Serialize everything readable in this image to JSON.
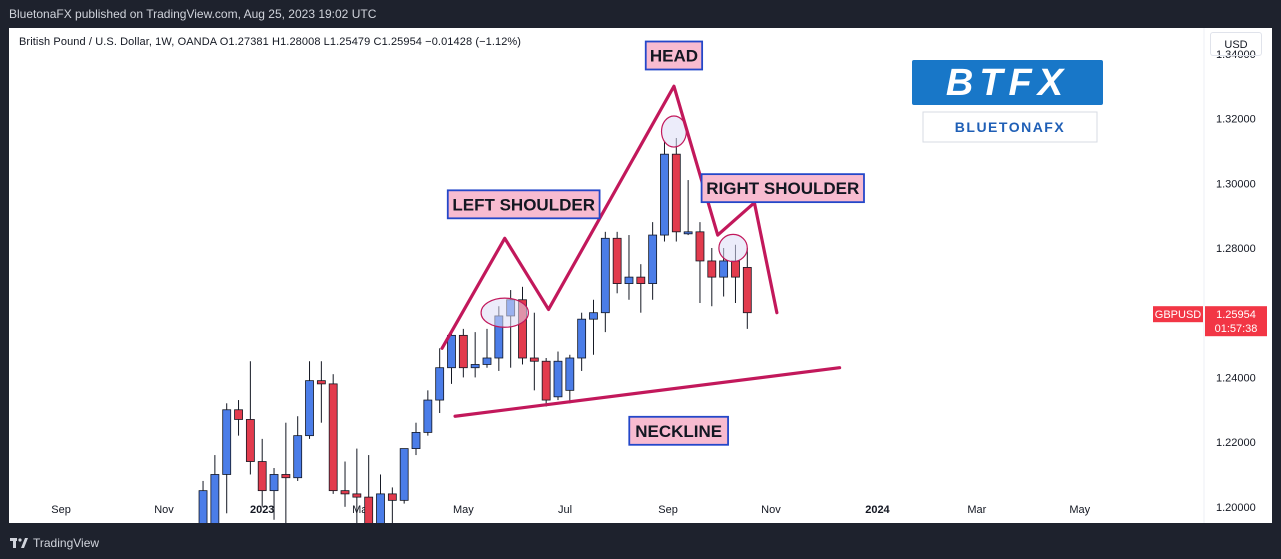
{
  "header": {
    "published": "BluetonaFX published on TradingView.com, Aug 25, 2023 19:02 UTC"
  },
  "legend": {
    "text": "British Pound / U.S. Dollar, 1W, OANDA  O1.27381  H1.28008  L1.25479  C1.25954  −0.01428 (−1.12%)"
  },
  "currency_button": "USD",
  "footer": {
    "brand": "TradingView"
  },
  "logo": {
    "main": "BTFX",
    "sub": "BLUETONAFX"
  },
  "colors": {
    "up": "#2962ff",
    "up_fill": "#4b7de8",
    "down": "#e23b4d",
    "pattern": "#c2185b",
    "label_bg": "#f8bbd0",
    "label_border": "#2447c9",
    "ellipse_fill": "#dcdcf5",
    "price_tag": "#f23645"
  },
  "chart_data": {
    "type": "candlestick",
    "symbol": "GBPUSD",
    "y_ticks": [
      "1.34000",
      "1.32000",
      "1.30000",
      "1.28000",
      "1.26000",
      "1.24000",
      "1.22000",
      "1.20000"
    ],
    "x_labels": [
      {
        "label": "Sep",
        "week": -17
      },
      {
        "label": "Nov",
        "week": -8.3
      },
      {
        "label": "2023",
        "week": 0
      },
      {
        "label": "Mar",
        "week": 8.4
      },
      {
        "label": "May",
        "week": 17
      },
      {
        "label": "Jul",
        "week": 25.6
      },
      {
        "label": "Sep",
        "week": 34.3
      },
      {
        "label": "Nov",
        "week": 43
      },
      {
        "label": "2024",
        "week": 52
      },
      {
        "label": "Mar",
        "week": 60.4
      },
      {
        "label": "May",
        "week": 69.1
      }
    ],
    "ylim": [
      1.195,
      1.348
    ],
    "xlim": [
      -21.4,
      79.6
    ],
    "candles": [
      {
        "w": -5,
        "o": 1.193,
        "h": 1.208,
        "l": 1.193,
        "c": 1.205
      },
      {
        "w": -4,
        "o": 1.19,
        "h": 1.216,
        "l": 1.186,
        "c": 1.21
      },
      {
        "w": -3,
        "o": 1.21,
        "h": 1.232,
        "l": 1.198,
        "c": 1.23
      },
      {
        "w": -2,
        "o": 1.23,
        "h": 1.233,
        "l": 1.222,
        "c": 1.227
      },
      {
        "w": -1,
        "o": 1.227,
        "h": 1.245,
        "l": 1.21,
        "c": 1.214
      },
      {
        "w": 0,
        "o": 1.214,
        "h": 1.221,
        "l": 1.2,
        "c": 1.205
      },
      {
        "w": 1,
        "o": 1.205,
        "h": 1.212,
        "l": 1.196,
        "c": 1.21
      },
      {
        "w": 2,
        "o": 1.21,
        "h": 1.226,
        "l": 1.193,
        "c": 1.209
      },
      {
        "w": 3,
        "o": 1.209,
        "h": 1.228,
        "l": 1.208,
        "c": 1.222
      },
      {
        "w": 4,
        "o": 1.222,
        "h": 1.245,
        "l": 1.221,
        "c": 1.239
      },
      {
        "w": 5,
        "o": 1.239,
        "h": 1.245,
        "l": 1.226,
        "c": 1.238
      },
      {
        "w": 6,
        "o": 1.238,
        "h": 1.241,
        "l": 1.204,
        "c": 1.205
      },
      {
        "w": 7,
        "o": 1.205,
        "h": 1.214,
        "l": 1.2,
        "c": 1.204
      },
      {
        "w": 8,
        "o": 1.204,
        "h": 1.218,
        "l": 1.191,
        "c": 1.203
      },
      {
        "w": 9,
        "o": 1.203,
        "h": 1.216,
        "l": 1.192,
        "c": 1.193
      },
      {
        "w": 10,
        "o": 1.193,
        "h": 1.21,
        "l": 1.188,
        "c": 1.204
      },
      {
        "w": 11,
        "o": 1.204,
        "h": 1.206,
        "l": 1.187,
        "c": 1.202
      },
      {
        "w": 12,
        "o": 1.202,
        "h": 1.218,
        "l": 1.201,
        "c": 1.218
      },
      {
        "w": 13,
        "o": 1.218,
        "h": 1.226,
        "l": 1.216,
        "c": 1.223
      },
      {
        "w": 14,
        "o": 1.223,
        "h": 1.236,
        "l": 1.222,
        "c": 1.233
      },
      {
        "w": 15,
        "o": 1.233,
        "h": 1.249,
        "l": 1.229,
        "c": 1.243
      },
      {
        "w": 16,
        "o": 1.243,
        "h": 1.254,
        "l": 1.238,
        "c": 1.253
      },
      {
        "w": 17,
        "o": 1.253,
        "h": 1.255,
        "l": 1.24,
        "c": 1.243
      },
      {
        "w": 18,
        "o": 1.243,
        "h": 1.254,
        "l": 1.24,
        "c": 1.244
      },
      {
        "w": 19,
        "o": 1.244,
        "h": 1.255,
        "l": 1.243,
        "c": 1.246
      },
      {
        "w": 20,
        "o": 1.246,
        "h": 1.262,
        "l": 1.242,
        "c": 1.259
      },
      {
        "w": 21,
        "o": 1.259,
        "h": 1.267,
        "l": 1.243,
        "c": 1.264
      },
      {
        "w": 22,
        "o": 1.264,
        "h": 1.268,
        "l": 1.244,
        "c": 1.246
      },
      {
        "w": 23,
        "o": 1.246,
        "h": 1.26,
        "l": 1.236,
        "c": 1.245
      },
      {
        "w": 24,
        "o": 1.245,
        "h": 1.246,
        "l": 1.231,
        "c": 1.233
      },
      {
        "w": 25,
        "o": 1.234,
        "h": 1.248,
        "l": 1.233,
        "c": 1.245
      },
      {
        "w": 26,
        "o": 1.236,
        "h": 1.247,
        "l": 1.232,
        "c": 1.246
      },
      {
        "w": 27,
        "o": 1.246,
        "h": 1.26,
        "l": 1.242,
        "c": 1.258
      },
      {
        "w": 28,
        "o": 1.258,
        "h": 1.264,
        "l": 1.247,
        "c": 1.26
      },
      {
        "w": 29,
        "o": 1.26,
        "h": 1.285,
        "l": 1.254,
        "c": 1.283
      },
      {
        "w": 30,
        "o": 1.283,
        "h": 1.285,
        "l": 1.266,
        "c": 1.269
      },
      {
        "w": 31,
        "o": 1.269,
        "h": 1.284,
        "l": 1.264,
        "c": 1.271
      },
      {
        "w": 32,
        "o": 1.271,
        "h": 1.275,
        "l": 1.26,
        "c": 1.269
      },
      {
        "w": 33,
        "o": 1.269,
        "h": 1.288,
        "l": 1.264,
        "c": 1.284
      },
      {
        "w": 34,
        "o": 1.284,
        "h": 1.313,
        "l": 1.282,
        "c": 1.309
      },
      {
        "w": 35,
        "o": 1.309,
        "h": 1.314,
        "l": 1.282,
        "c": 1.285
      },
      {
        "w": 36,
        "o": 1.285,
        "h": 1.301,
        "l": 1.284,
        "c": 1.285
      },
      {
        "w": 37,
        "o": 1.285,
        "h": 1.288,
        "l": 1.263,
        "c": 1.276
      },
      {
        "w": 38,
        "o": 1.276,
        "h": 1.28,
        "l": 1.262,
        "c": 1.271
      },
      {
        "w": 39,
        "o": 1.271,
        "h": 1.28,
        "l": 1.265,
        "c": 1.276
      },
      {
        "w": 40,
        "o": 1.276,
        "h": 1.281,
        "l": 1.263,
        "c": 1.271
      },
      {
        "w": 41,
        "o": 1.274,
        "h": 1.28,
        "l": 1.255,
        "c": 1.26
      }
    ],
    "pattern_line": [
      {
        "w": 15.2,
        "p": 1.249
      },
      {
        "w": 20.5,
        "p": 1.283
      },
      {
        "w": 24.2,
        "p": 1.261
      },
      {
        "w": 34.8,
        "p": 1.33
      },
      {
        "w": 38.5,
        "p": 1.284
      },
      {
        "w": 41.6,
        "p": 1.294
      },
      {
        "w": 43.5,
        "p": 1.26
      }
    ],
    "neckline": [
      {
        "w": 16.3,
        "p": 1.228
      },
      {
        "w": 48.8,
        "p": 1.243
      }
    ],
    "ellipses": [
      {
        "w": 20.5,
        "p": 1.26,
        "rw": 2.0,
        "rp": 0.0045
      },
      {
        "w": 34.8,
        "p": 1.316,
        "rw": 1.05,
        "rp": 0.0048
      },
      {
        "w": 39.8,
        "p": 1.28,
        "rw": 1.2,
        "rp": 0.0042
      }
    ],
    "annotations": [
      {
        "text": "HEAD",
        "w": 34.8,
        "p": 1.3395
      },
      {
        "text": "LEFT SHOULDER",
        "w": 22.1,
        "p": 1.2935
      },
      {
        "text": "RIGHT SHOULDER",
        "w": 44.0,
        "p": 1.2985
      },
      {
        "text": "NECKLINE",
        "w": 35.2,
        "p": 1.2235
      }
    ],
    "last_price": {
      "symbol": "GBPUSD",
      "value": "1.25954",
      "countdown": "01:57:38",
      "p": 1.25954
    }
  }
}
